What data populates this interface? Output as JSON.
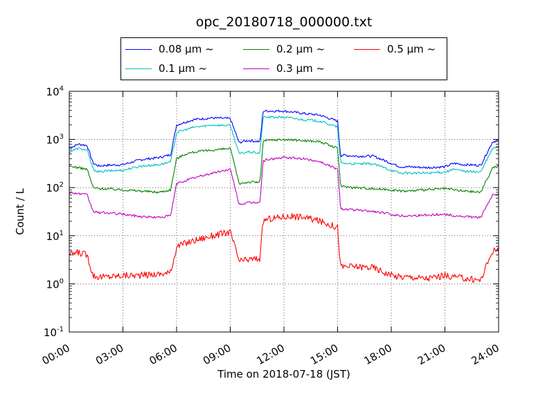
{
  "chart_data": {
    "type": "line",
    "title": "opc_20180718_000000.txt",
    "xlabel": "Time on 2018-07-18 (JST)",
    "ylabel": "Count / L",
    "y_scale": "log",
    "ylim": [
      0.1,
      10000
    ],
    "xlim": [
      "00:00",
      "24:00"
    ],
    "x_ticks": [
      "00:00",
      "03:00",
      "06:00",
      "09:00",
      "12:00",
      "15:00",
      "18:00",
      "21:00",
      "24:00"
    ],
    "y_ticks": [
      {
        "base": "10",
        "exp": "-1"
      },
      {
        "base": "10",
        "exp": "0"
      },
      {
        "base": "10",
        "exp": "1"
      },
      {
        "base": "10",
        "exp": "2"
      },
      {
        "base": "10",
        "exp": "3"
      },
      {
        "base": "10",
        "exp": "4"
      }
    ],
    "grid": true,
    "legend_position": "top-center, above plot",
    "series": [
      {
        "name": "0.08 μm ~",
        "color": "#0000ff",
        "x": [
          "00:00",
          "00:30",
          "01:00",
          "01:20",
          "01:40",
          "02:00",
          "03:00",
          "04:00",
          "05:00",
          "05:40",
          "06:00",
          "06:30",
          "07:00",
          "08:00",
          "09:00",
          "09:30",
          "09:40",
          "10:00",
          "10:40",
          "10:50",
          "11:00",
          "12:00",
          "13:00",
          "14:00",
          "15:00",
          "15:10",
          "15:20",
          "16:00",
          "17:00",
          "18:00",
          "18:30",
          "19:00",
          "20:00",
          "21:00",
          "21:30",
          "22:00",
          "23:00",
          "23:40",
          "24:00"
        ],
        "y": [
          650,
          800,
          750,
          320,
          280,
          290,
          300,
          380,
          420,
          480,
          2000,
          2300,
          2600,
          2800,
          2700,
          850,
          900,
          950,
          900,
          3900,
          3900,
          3900,
          3500,
          3200,
          2400,
          460,
          470,
          450,
          450,
          320,
          270,
          270,
          260,
          270,
          320,
          300,
          290,
          900,
          950
        ]
      },
      {
        "name": "0.1 μm ~",
        "color": "#00bfbf",
        "x": [
          "00:00",
          "00:30",
          "01:00",
          "01:20",
          "01:40",
          "02:00",
          "03:00",
          "04:00",
          "05:00",
          "05:40",
          "06:00",
          "06:30",
          "07:00",
          "08:00",
          "09:00",
          "09:30",
          "09:40",
          "10:00",
          "10:40",
          "10:50",
          "11:00",
          "12:00",
          "13:00",
          "14:00",
          "15:00",
          "15:10",
          "15:20",
          "16:00",
          "17:00",
          "18:00",
          "18:30",
          "19:00",
          "20:00",
          "21:00",
          "21:30",
          "22:00",
          "23:00",
          "23:40",
          "24:00"
        ],
        "y": [
          550,
          650,
          600,
          240,
          210,
          220,
          230,
          280,
          300,
          340,
          1400,
          1600,
          1800,
          2000,
          1950,
          500,
          520,
          550,
          520,
          2900,
          2900,
          2900,
          2600,
          2400,
          1800,
          320,
          320,
          310,
          310,
          230,
          200,
          200,
          200,
          210,
          240,
          220,
          210,
          650,
          700
        ]
      },
      {
        "name": "0.2 μm ~",
        "color": "#008000",
        "x": [
          "00:00",
          "00:30",
          "01:00",
          "01:20",
          "01:40",
          "02:00",
          "03:00",
          "04:00",
          "05:00",
          "05:40",
          "06:00",
          "06:30",
          "07:00",
          "08:00",
          "09:00",
          "09:30",
          "09:40",
          "10:00",
          "10:40",
          "10:50",
          "11:00",
          "12:00",
          "13:00",
          "14:00",
          "15:00",
          "15:10",
          "15:20",
          "16:00",
          "17:00",
          "18:00",
          "18:30",
          "19:00",
          "20:00",
          "21:00",
          "21:30",
          "22:00",
          "23:00",
          "23:40",
          "24:00"
        ],
        "y": [
          280,
          260,
          240,
          100,
          95,
          95,
          90,
          85,
          80,
          90,
          400,
          500,
          550,
          600,
          650,
          120,
          125,
          130,
          130,
          900,
          950,
          1000,
          950,
          900,
          650,
          110,
          105,
          100,
          95,
          90,
          85,
          85,
          90,
          95,
          90,
          85,
          80,
          260,
          280
        ]
      },
      {
        "name": "0.3 μm ~",
        "color": "#bf00bf",
        "x": [
          "00:00",
          "00:30",
          "01:00",
          "01:20",
          "01:40",
          "02:00",
          "03:00",
          "04:00",
          "05:00",
          "05:40",
          "06:00",
          "06:30",
          "07:00",
          "08:00",
          "09:00",
          "09:30",
          "09:40",
          "10:00",
          "10:40",
          "10:50",
          "11:00",
          "12:00",
          "13:00",
          "14:00",
          "15:00",
          "15:10",
          "15:20",
          "16:00",
          "17:00",
          "18:00",
          "18:30",
          "19:00",
          "20:00",
          "21:00",
          "21:30",
          "22:00",
          "23:00",
          "23:40",
          "24:00"
        ],
        "y": [
          80,
          75,
          70,
          32,
          30,
          30,
          28,
          25,
          24,
          26,
          120,
          140,
          160,
          200,
          240,
          45,
          46,
          48,
          50,
          350,
          380,
          420,
          400,
          350,
          240,
          38,
          36,
          34,
          32,
          28,
          26,
          26,
          27,
          28,
          26,
          25,
          24,
          70,
          75
        ]
      },
      {
        "name": "0.5 μm ~",
        "color": "#ff0000",
        "x": [
          "00:00",
          "00:30",
          "01:00",
          "01:20",
          "01:40",
          "02:00",
          "03:00",
          "04:00",
          "05:00",
          "05:40",
          "06:00",
          "06:30",
          "07:00",
          "08:00",
          "09:00",
          "09:30",
          "09:40",
          "10:00",
          "10:40",
          "10:50",
          "11:00",
          "12:00",
          "13:00",
          "14:00",
          "15:00",
          "15:10",
          "15:20",
          "16:00",
          "17:00",
          "18:00",
          "18:30",
          "19:00",
          "20:00",
          "21:00",
          "21:30",
          "22:00",
          "23:00",
          "23:40",
          "24:00"
        ],
        "y": [
          4,
          4.5,
          4,
          1.5,
          1.4,
          1.4,
          1.5,
          1.5,
          1.6,
          1.7,
          6,
          7,
          8,
          10,
          12,
          3,
          3,
          3.2,
          3.4,
          20,
          22,
          25,
          25,
          20,
          15,
          2.2,
          2.3,
          2.3,
          2.2,
          1.5,
          1.4,
          1.4,
          1.3,
          1.5,
          1.4,
          1.3,
          1.2,
          5,
          5
        ]
      }
    ]
  }
}
